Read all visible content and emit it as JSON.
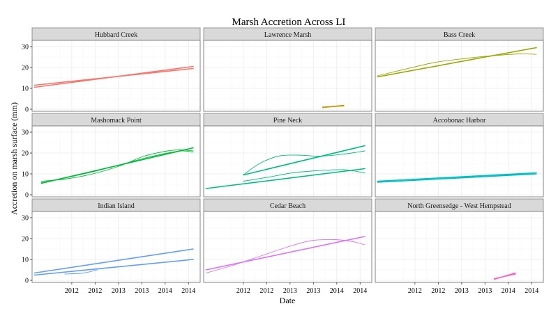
{
  "chart_data": {
    "type": "line",
    "title": "Marsh Accretion Across LI",
    "xlabel": "Date",
    "ylabel": "Accretion on marsh surface (mm)",
    "x_ticks": [
      "2012",
      "2012",
      "2013",
      "2013",
      "2014",
      "2014"
    ],
    "x_tick_positions": [
      2011.75,
      2012.25,
      2012.75,
      2013.25,
      2013.75,
      2014.25
    ],
    "xlim": [
      2010.9,
      2014.5
    ],
    "ylim": [
      -1,
      33
    ],
    "y_ticks": [
      0,
      10,
      20,
      30
    ],
    "grid": true,
    "panels": [
      {
        "name": "Hubbard Creek",
        "color": "#F8766D",
        "series": [
          {
            "kind": "fit",
            "x": [
              2010.95,
              2014.35
            ],
            "y": [
              10.5,
              20.5
            ]
          },
          {
            "kind": "fit",
            "x": [
              2010.95,
              2014.35
            ],
            "y": [
              11.5,
              19.5
            ]
          }
        ]
      },
      {
        "name": "Lawrence Marsh",
        "color": "#C49A00",
        "series": [
          {
            "kind": "fit",
            "x": [
              2013.45,
              2013.9
            ],
            "y": [
              0.8,
              1.8
            ]
          },
          {
            "kind": "fit",
            "x": [
              2013.45,
              2013.9
            ],
            "y": [
              1.0,
              1.6
            ]
          }
        ]
      },
      {
        "name": "Bass Creek",
        "color": "#99A800",
        "series": [
          {
            "kind": "fit",
            "x": [
              2010.95,
              2014.35
            ],
            "y": [
              15.5,
              29.5
            ]
          },
          {
            "kind": "smooth",
            "x": [
              2010.95,
              2011.5,
              2012.2,
              2012.9,
              2013.5,
              2014.0,
              2014.35
            ],
            "y": [
              16.0,
              19.0,
              22.5,
              24.5,
              25.8,
              26.5,
              26.3
            ]
          }
        ]
      },
      {
        "name": "Mashomack Point",
        "color": "#00BA38",
        "series": [
          {
            "kind": "fit",
            "x": [
              2011.1,
              2014.35
            ],
            "y": [
              5.5,
              22.5
            ]
          },
          {
            "kind": "smooth",
            "x": [
              2011.1,
              2011.6,
              2012.2,
              2012.8,
              2013.3,
              2013.8,
              2014.1,
              2014.35
            ],
            "y": [
              6.5,
              7.5,
              10.0,
              14.0,
              18.5,
              21.0,
              21.5,
              21.0
            ]
          },
          {
            "kind": "smooth",
            "x": [
              2011.1,
              2011.6,
              2012.2,
              2012.8,
              2013.3,
              2013.8,
              2014.1,
              2014.35
            ],
            "y": [
              5.8,
              8.0,
              11.0,
              14.5,
              17.5,
              20.0,
              21.0,
              20.5
            ]
          }
        ]
      },
      {
        "name": "Pine Neck",
        "color": "#00BF7D",
        "series": [
          {
            "kind": "fit",
            "x": [
              2010.95,
              2014.35
            ],
            "y": [
              3.0,
              12.5
            ]
          },
          {
            "kind": "fit",
            "x": [
              2011.75,
              2014.35
            ],
            "y": [
              9.5,
              23.5
            ]
          },
          {
            "kind": "smooth",
            "x": [
              2011.75,
              2012.1,
              2012.5,
              2012.9,
              2013.4,
              2013.9,
              2014.35
            ],
            "y": [
              9.5,
              15.0,
              18.5,
              19.0,
              18.5,
              19.5,
              21.0
            ]
          },
          {
            "kind": "smooth",
            "x": [
              2011.75,
              2012.3,
              2012.8,
              2013.3,
              2013.9,
              2014.35
            ],
            "y": [
              6.5,
              8.5,
              10.5,
              11.5,
              12.0,
              10.5
            ]
          }
        ]
      },
      {
        "name": "Accobonac Harbor",
        "color": "#00BFC4",
        "series": [
          {
            "kind": "fit",
            "x": [
              2010.95,
              2014.35
            ],
            "y": [
              6.5,
              10.5
            ]
          },
          {
            "kind": "fit",
            "x": [
              2010.95,
              2014.35
            ],
            "y": [
              6.0,
              10.0
            ]
          }
        ]
      },
      {
        "name": "Indian Island",
        "color": "#619CFF",
        "series": [
          {
            "kind": "fit",
            "x": [
              2010.95,
              2014.35
            ],
            "y": [
              3.5,
              15.0
            ]
          },
          {
            "kind": "fit",
            "x": [
              2010.95,
              2014.35
            ],
            "y": [
              2.5,
              10.0
            ]
          },
          {
            "kind": "smooth",
            "x": [
              2011.6,
              2012.0,
              2012.3
            ],
            "y": [
              3.0,
              3.5,
              5.0
            ]
          }
        ]
      },
      {
        "name": "Cedar Beach",
        "color": "#DB72FB",
        "series": [
          {
            "kind": "fit",
            "x": [
              2010.95,
              2014.35
            ],
            "y": [
              5.0,
              21.0
            ]
          },
          {
            "kind": "smooth",
            "x": [
              2010.95,
              2011.5,
              2012.1,
              2012.7,
              2013.2,
              2013.7,
              2014.1,
              2014.35
            ],
            "y": [
              3.5,
              7.0,
              11.5,
              16.0,
              19.0,
              19.5,
              18.5,
              17.0
            ]
          }
        ]
      },
      {
        "name": "North Greensedge - West Hempstead",
        "color": "#FF61C3",
        "series": [
          {
            "kind": "fit",
            "x": [
              2013.45,
              2013.9
            ],
            "y": [
              0.5,
              3.5
            ]
          },
          {
            "kind": "fit",
            "x": [
              2013.45,
              2013.9
            ],
            "y": [
              0.8,
              3.0
            ]
          }
        ]
      }
    ]
  }
}
